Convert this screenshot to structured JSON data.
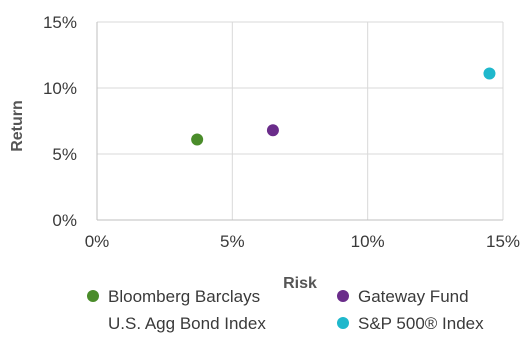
{
  "chart_data": {
    "type": "scatter",
    "xlabel": "Risk",
    "ylabel": "Return",
    "xlim": [
      0,
      15
    ],
    "ylim": [
      0,
      15
    ],
    "x_ticks": [
      {
        "value": 0,
        "label": "0%"
      },
      {
        "value": 5,
        "label": "5%"
      },
      {
        "value": 10,
        "label": "10%"
      },
      {
        "value": 15,
        "label": "15%"
      }
    ],
    "y_ticks": [
      {
        "value": 0,
        "label": "0%"
      },
      {
        "value": 5,
        "label": "5%"
      },
      {
        "value": 10,
        "label": "10%"
      },
      {
        "value": 15,
        "label": "15%"
      }
    ],
    "grid": true,
    "legend_position": "bottom",
    "series": [
      {
        "name_lines": [
          "Bloomberg Barclays",
          "U.S. Agg Bond Index"
        ],
        "color": "#4a8c2a",
        "x": 3.7,
        "y": 6.1
      },
      {
        "name_lines": [
          "Gateway Fund"
        ],
        "color": "#6a2c8a",
        "x": 6.5,
        "y": 6.8
      },
      {
        "name_lines": [
          "S&P 500® Index"
        ],
        "color": "#1fb8cc",
        "x": 14.5,
        "y": 11.1
      }
    ]
  }
}
